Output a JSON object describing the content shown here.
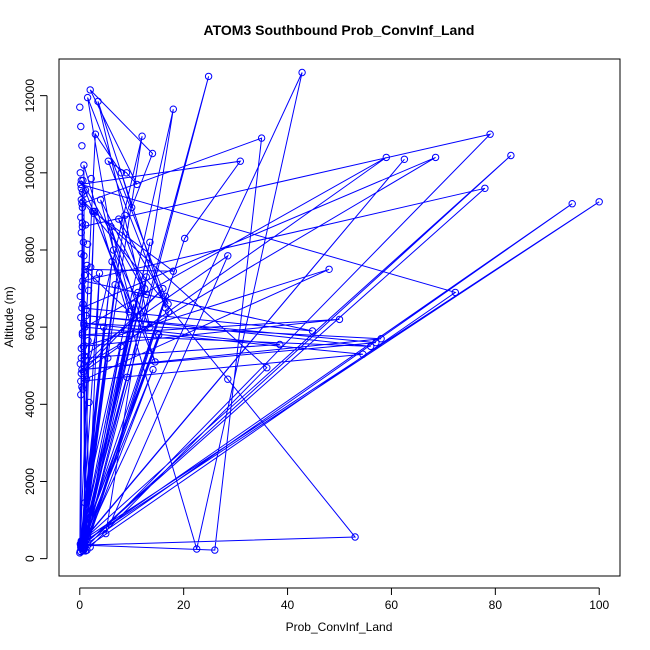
{
  "chart_data": {
    "type": "scatter",
    "title": "ATOM3 Southbound Prob_ConvInf_Land",
    "xlabel": "Prob_ConvInf_Land",
    "ylabel": "Altitude (m)",
    "xlim": [
      -4,
      104
    ],
    "ylim": [
      -450,
      12950
    ],
    "x_ticks": [
      0,
      20,
      40,
      60,
      80,
      100
    ],
    "y_ticks": [
      0,
      2000,
      4000,
      6000,
      8000,
      10000,
      12000
    ],
    "x_tick_labels": [
      "0",
      "20",
      "40",
      "60",
      "80",
      "100"
    ],
    "y_tick_labels": [
      "0",
      "2000",
      "4000",
      "6000",
      "8000",
      "10000",
      "12000"
    ],
    "grid": false,
    "legend": "none",
    "series": [
      {
        "color": "#0000ff",
        "mode": "lines+markers",
        "x": [
          0,
          0.5,
          1,
          0.8,
          22.5,
          42.8,
          0.6,
          26,
          35,
          0.4,
          1.1,
          20.2,
          30.9,
          0.2,
          72.3,
          0.9,
          79,
          0.5,
          2,
          36,
          0.3,
          28.5,
          53,
          1,
          94.8,
          0.5,
          100,
          0.8,
          62.5,
          1.5,
          24.8,
          0.4,
          83,
          0.2,
          78,
          0.6,
          44.8,
          0.4,
          68.5,
          0.8,
          16,
          0.3,
          59,
          1,
          54.5,
          0.2,
          48,
          0.7,
          50,
          0.5,
          56,
          1.2,
          57,
          0.4,
          58,
          0.8,
          38.5,
          0.3,
          28.5,
          5,
          18,
          1,
          12,
          0.6,
          3,
          8,
          10,
          14,
          2,
          11,
          9,
          5.5,
          16.5,
          3.5,
          13.5,
          6.5,
          1.5,
          17,
          7.5,
          12.5,
          4,
          9.5,
          1,
          18,
          2.5,
          14.5,
          6,
          10.5,
          0.3,
          12.8
        ],
        "y": [
          150,
          9500,
          300,
          10200,
          250,
          12600,
          350,
          220,
          10900,
          9200,
          200,
          8300,
          10300,
          9700,
          6900,
          250,
          11000,
          8600,
          300,
          4950,
          9300,
          4650,
          560,
          350,
          9200,
          400,
          9250,
          500,
          10350,
          600,
          12500,
          450,
          10450,
          280,
          9600,
          7200,
          5900,
          6500,
          10400,
          5000,
          7000,
          4800,
          10400,
          6000,
          5300,
          4600,
          7500,
          5500,
          6200,
          5800,
          5500,
          6300,
          5600,
          4900,
          5700,
          6100,
          5550,
          5200,
          7850,
          650,
          11650,
          1450,
          10950,
          4400,
          11000,
          10000,
          9100,
          10500,
          12150,
          9700,
          10000,
          10300,
          6500,
          11850,
          6000,
          8000,
          11950,
          6600,
          8800,
          7000,
          9300,
          6400,
          7500,
          7450,
          9000,
          5100,
          8600,
          6250,
          9800,
          6850
        ]
      },
      {
        "color": "#0000ff",
        "mode": "lines+markers",
        "x": [
          0.2,
          0.5,
          1.4,
          3.8,
          0.3,
          5.4,
          0.6,
          6.8,
          0.2,
          9.1,
          0.9,
          11.2,
          0.4,
          13.5,
          0.7,
          15.2,
          0.3,
          17.1,
          0.5,
          2.8,
          0.1,
          4.6,
          0.8,
          7.9,
          0.3,
          10.4,
          0.6,
          12.8,
          0.2,
          14.1,
          0.9,
          16.5,
          0.4,
          8.7,
          0.1,
          6.2,
          0.5
        ],
        "y": [
          180,
          8700,
          220,
          7400,
          400,
          5200,
          260,
          7100,
          350,
          4700,
          280,
          6900,
          320,
          8200,
          210,
          5800,
          420,
          6400,
          300,
          9000,
          380,
          6000,
          240,
          5500,
          460,
          6600,
          200,
          7300,
          330,
          4900,
          270,
          6800,
          410,
          8900,
          190,
          7700,
          360
        ]
      },
      {
        "color": "#0000ff",
        "mode": "markers",
        "x": [
          0,
          0.2,
          0.4,
          0.1,
          0.6,
          0.3,
          0.8,
          0.5,
          0.2,
          1.1,
          0.7,
          0.3,
          1.4,
          0.9,
          0.4,
          0.1,
          0.6,
          1.2,
          0.2,
          0.8,
          0.5,
          1.6,
          0.3,
          0.9,
          0.1,
          0.7,
          1.3,
          0.4,
          0.2,
          1.8,
          2.2,
          1.1,
          0.6,
          2.7,
          0.3,
          1.5,
          0.8,
          2.1,
          3.2,
          1.7
        ],
        "y": [
          11700,
          11200,
          10700,
          10000,
          9800,
          9600,
          9450,
          9100,
          8850,
          8650,
          8200,
          7900,
          7600,
          7350,
          7050,
          6800,
          6600,
          6450,
          6250,
          6050,
          5850,
          5650,
          5450,
          5250,
          5050,
          4850,
          4650,
          4450,
          4250,
          4050,
          9850,
          9550,
          9250,
          8950,
          8450,
          8150,
          7850,
          7550,
          7250,
          6950
        ]
      }
    ]
  }
}
